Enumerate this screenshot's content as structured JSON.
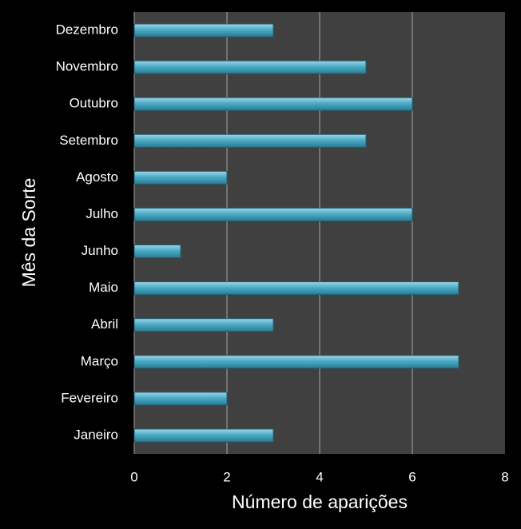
{
  "chart_data": {
    "type": "bar",
    "orientation": "horizontal",
    "x_label": "Número de aparições",
    "y_label": "Mês da Sorte",
    "categories": [
      "Janeiro",
      "Fevereiro",
      "Março",
      "Abril",
      "Maio",
      "Junho",
      "Julho",
      "Agosto",
      "Setembro",
      "Outubro",
      "Novembro",
      "Dezembro"
    ],
    "values": [
      3,
      2,
      7,
      3,
      7,
      1,
      6,
      2,
      5,
      6,
      5,
      3
    ],
    "color": "#4bacc6",
    "xlim": [
      0,
      8
    ],
    "xticks": [
      0,
      2,
      4,
      6,
      8
    ],
    "grid": true
  }
}
